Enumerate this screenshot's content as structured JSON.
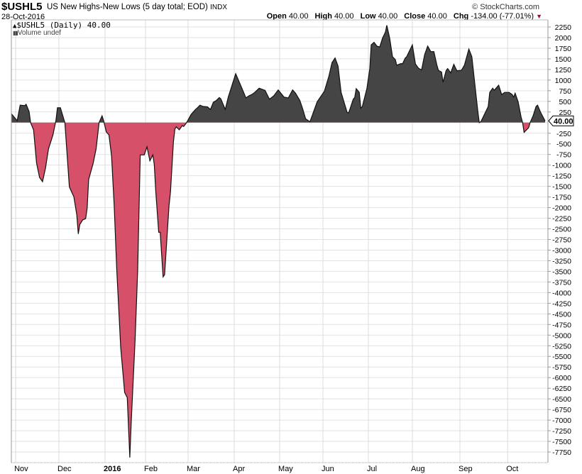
{
  "header": {
    "symbol": "$USHL5",
    "name": "US New Highs-New Lows (5 day total; EOD)",
    "exchange": "INDX",
    "date": "28-Oct-2016",
    "copyright": "© StockCharts.com",
    "open_label": "Open",
    "open": "40.00",
    "high_label": "High",
    "high": "40.00",
    "low_label": "Low",
    "low": "40.00",
    "close_label": "Close",
    "close": "40.00",
    "chg_label": "Chg",
    "chg": "-134.00 (-77.01%)",
    "chg_icon": "down-triangle-icon"
  },
  "legend": {
    "series": "$USHL5 (Daily) 40.00",
    "volume": "Volume undef"
  },
  "price_marker": "40.00",
  "colors": {
    "positive": "#454545",
    "negative": "#d6506a",
    "line": "#111111",
    "down": "#a0102a"
  },
  "chart_data": {
    "type": "area",
    "xlabel": "",
    "ylabel": "",
    "ylim": [
      -7750,
      2250
    ],
    "yticks": [
      2250,
      2000,
      1750,
      1500,
      1250,
      1000,
      750,
      500,
      250,
      -250,
      -500,
      -750,
      -1000,
      -1250,
      -1500,
      -1750,
      -2000,
      -2250,
      -2500,
      -2750,
      -3000,
      -3250,
      -3500,
      -3750,
      -4000,
      -4250,
      -4500,
      -4750,
      -5000,
      -5250,
      -5500,
      -5750,
      -6000,
      -6250,
      -6500,
      -6750,
      -7000,
      -7250,
      -7500,
      -7750
    ],
    "xticks": [
      {
        "label": "Nov",
        "date": "2015-11-02",
        "bold": false
      },
      {
        "label": "Dec",
        "date": "2015-12-01",
        "bold": false
      },
      {
        "label": "2016",
        "date": "2016-01-01",
        "bold": true
      },
      {
        "label": "Feb",
        "date": "2016-02-01",
        "bold": false
      },
      {
        "label": "Mar",
        "date": "2016-03-01",
        "bold": false
      },
      {
        "label": "Apr",
        "date": "2016-04-01",
        "bold": false
      },
      {
        "label": "May",
        "date": "2016-05-02",
        "bold": false
      },
      {
        "label": "Jun",
        "date": "2016-06-01",
        "bold": false
      },
      {
        "label": "Jul",
        "date": "2016-07-01",
        "bold": false
      },
      {
        "label": "Aug",
        "date": "2016-08-01",
        "bold": false
      },
      {
        "label": "Sep",
        "date": "2016-09-01",
        "bold": false
      },
      {
        "label": "Oct",
        "date": "2016-10-03",
        "bold": false
      }
    ],
    "grid": true,
    "points": [
      [
        "2015-10-30",
        210
      ],
      [
        "2015-11-03",
        45
      ],
      [
        "2015-11-05",
        410
      ],
      [
        "2015-11-08",
        400
      ],
      [
        "2015-11-09",
        430
      ],
      [
        "2015-11-11",
        260
      ],
      [
        "2015-11-12",
        0
      ],
      [
        "2015-11-14",
        -170
      ],
      [
        "2015-11-16",
        -950
      ],
      [
        "2015-11-18",
        -1290
      ],
      [
        "2015-11-20",
        -1390
      ],
      [
        "2015-11-22",
        -1070
      ],
      [
        "2015-11-24",
        -620
      ],
      [
        "2015-11-27",
        -290
      ],
      [
        "2015-11-29",
        50
      ],
      [
        "2015-11-30",
        350
      ],
      [
        "2015-12-02",
        350
      ],
      [
        "2015-12-05",
        0
      ],
      [
        "2015-12-06",
        -500
      ],
      [
        "2015-12-08",
        -1510
      ],
      [
        "2015-12-10",
        -1670
      ],
      [
        "2015-12-11",
        -1740
      ],
      [
        "2015-12-13",
        -2170
      ],
      [
        "2015-12-14",
        -2620
      ],
      [
        "2015-12-15",
        -2400
      ],
      [
        "2015-12-17",
        -2290
      ],
      [
        "2015-12-19",
        -2260
      ],
      [
        "2015-12-20",
        -2010
      ],
      [
        "2015-12-21",
        -1340
      ],
      [
        "2015-12-24",
        -960
      ],
      [
        "2015-12-26",
        -620
      ],
      [
        "2015-12-28",
        0
      ],
      [
        "2015-12-30",
        160
      ],
      [
        "2015-12-31",
        50
      ],
      [
        "2016-01-02",
        -220
      ],
      [
        "2016-01-04",
        -290
      ],
      [
        "2016-01-06",
        -790
      ],
      [
        "2016-01-08",
        -1960
      ],
      [
        "2016-01-10",
        -3460
      ],
      [
        "2016-01-13",
        -5300
      ],
      [
        "2016-01-16",
        -6350
      ],
      [
        "2016-01-18",
        -6470
      ],
      [
        "2016-01-20",
        -7880
      ],
      [
        "2016-01-21",
        -7080
      ],
      [
        "2016-01-24",
        -5130
      ],
      [
        "2016-01-26",
        -3460
      ],
      [
        "2016-01-28",
        -760
      ],
      [
        "2016-01-31",
        -760
      ],
      [
        "2016-02-02",
        -570
      ],
      [
        "2016-02-04",
        -900
      ],
      [
        "2016-02-06",
        -760
      ],
      [
        "2016-02-07",
        -990
      ],
      [
        "2016-02-08",
        -1630
      ],
      [
        "2016-02-10",
        -2580
      ],
      [
        "2016-02-11",
        -2580
      ],
      [
        "2016-02-13",
        -3630
      ],
      [
        "2016-02-14",
        -3580
      ],
      [
        "2016-02-17",
        -1960
      ],
      [
        "2016-02-18",
        -1630
      ],
      [
        "2016-02-20",
        -460
      ],
      [
        "2016-02-21",
        -150
      ],
      [
        "2016-02-22",
        -100
      ],
      [
        "2016-02-24",
        -170
      ],
      [
        "2016-02-26",
        -70
      ],
      [
        "2016-02-27",
        -90
      ],
      [
        "2016-02-29",
        0
      ],
      [
        "2016-03-03",
        190
      ],
      [
        "2016-03-06",
        310
      ],
      [
        "2016-03-07",
        340
      ],
      [
        "2016-03-09",
        410
      ],
      [
        "2016-03-11",
        380
      ],
      [
        "2016-03-14",
        370
      ],
      [
        "2016-03-16",
        310
      ],
      [
        "2016-03-18",
        480
      ],
      [
        "2016-03-20",
        520
      ],
      [
        "2016-03-22",
        590
      ],
      [
        "2016-03-23",
        560
      ],
      [
        "2016-03-26",
        310
      ],
      [
        "2016-03-28",
        600
      ],
      [
        "2016-04-02",
        1150
      ],
      [
        "2016-04-06",
        830
      ],
      [
        "2016-04-09",
        580
      ],
      [
        "2016-04-11",
        630
      ],
      [
        "2016-04-13",
        660
      ],
      [
        "2016-04-15",
        710
      ],
      [
        "2016-04-18",
        810
      ],
      [
        "2016-04-22",
        760
      ],
      [
        "2016-04-25",
        550
      ],
      [
        "2016-04-28",
        630
      ],
      [
        "2016-05-01",
        770
      ],
      [
        "2016-05-05",
        600
      ],
      [
        "2016-05-08",
        580
      ],
      [
        "2016-05-11",
        770
      ],
      [
        "2016-05-13",
        690
      ],
      [
        "2016-05-16",
        520
      ],
      [
        "2016-05-18",
        320
      ],
      [
        "2016-05-20",
        90
      ],
      [
        "2016-05-23",
        20
      ],
      [
        "2016-05-28",
        490
      ],
      [
        "2016-06-02",
        740
      ],
      [
        "2016-06-05",
        1100
      ],
      [
        "2016-06-07",
        1410
      ],
      [
        "2016-06-09",
        1520
      ],
      [
        "2016-06-11",
        1330
      ],
      [
        "2016-06-13",
        710
      ],
      [
        "2016-06-17",
        240
      ],
      [
        "2016-06-18",
        230
      ],
      [
        "2016-06-21",
        550
      ],
      [
        "2016-06-22",
        590
      ],
      [
        "2016-06-23",
        800
      ],
      [
        "2016-06-25",
        710
      ],
      [
        "2016-06-26",
        340
      ],
      [
        "2016-06-27",
        380
      ],
      [
        "2016-06-30",
        800
      ],
      [
        "2016-07-02",
        1270
      ],
      [
        "2016-07-03",
        1830
      ],
      [
        "2016-07-05",
        1890
      ],
      [
        "2016-07-07",
        1800
      ],
      [
        "2016-07-09",
        1780
      ],
      [
        "2016-07-11",
        1990
      ],
      [
        "2016-07-13",
        2130
      ],
      [
        "2016-07-14",
        2290
      ],
      [
        "2016-07-16",
        1990
      ],
      [
        "2016-07-18",
        1550
      ],
      [
        "2016-07-20",
        1480
      ],
      [
        "2016-07-21",
        1350
      ],
      [
        "2016-07-24",
        1390
      ],
      [
        "2016-07-25",
        1380
      ],
      [
        "2016-07-27",
        1520
      ],
      [
        "2016-07-28",
        1550
      ],
      [
        "2016-08-01",
        1830
      ],
      [
        "2016-08-03",
        1380
      ],
      [
        "2016-08-05",
        1280
      ],
      [
        "2016-08-07",
        1240
      ],
      [
        "2016-08-09",
        1600
      ],
      [
        "2016-08-11",
        1800
      ],
      [
        "2016-08-13",
        1670
      ],
      [
        "2016-08-15",
        1670
      ],
      [
        "2016-08-17",
        1350
      ],
      [
        "2016-08-18",
        1230
      ],
      [
        "2016-08-20",
        1190
      ],
      [
        "2016-08-21",
        950
      ],
      [
        "2016-08-23",
        1220
      ],
      [
        "2016-08-24",
        1270
      ],
      [
        "2016-08-26",
        1170
      ],
      [
        "2016-08-28",
        1370
      ],
      [
        "2016-08-30",
        1220
      ],
      [
        "2016-09-02",
        1230
      ],
      [
        "2016-09-04",
        1350
      ],
      [
        "2016-09-07",
        1730
      ],
      [
        "2016-09-09",
        1550
      ],
      [
        "2016-09-11",
        910
      ],
      [
        "2016-09-13",
        270
      ],
      [
        "2016-09-14",
        0
      ],
      [
        "2016-09-15",
        20
      ],
      [
        "2016-09-17",
        160
      ],
      [
        "2016-09-20",
        380
      ],
      [
        "2016-09-21",
        710
      ],
      [
        "2016-09-23",
        810
      ],
      [
        "2016-09-24",
        760
      ],
      [
        "2016-09-27",
        880
      ],
      [
        "2016-09-29",
        660
      ],
      [
        "2016-10-01",
        710
      ],
      [
        "2016-10-04",
        710
      ],
      [
        "2016-10-06",
        660
      ],
      [
        "2016-10-07",
        600
      ],
      [
        "2016-10-08",
        690
      ],
      [
        "2016-10-10",
        490
      ],
      [
        "2016-10-12",
        130
      ],
      [
        "2016-10-13",
        0
      ],
      [
        "2016-10-14",
        -230
      ],
      [
        "2016-10-17",
        -120
      ],
      [
        "2016-10-18",
        0
      ],
      [
        "2016-10-20",
        160
      ],
      [
        "2016-10-22",
        380
      ],
      [
        "2016-10-23",
        410
      ],
      [
        "2016-10-25",
        240
      ],
      [
        "2016-10-28",
        40
      ]
    ]
  }
}
